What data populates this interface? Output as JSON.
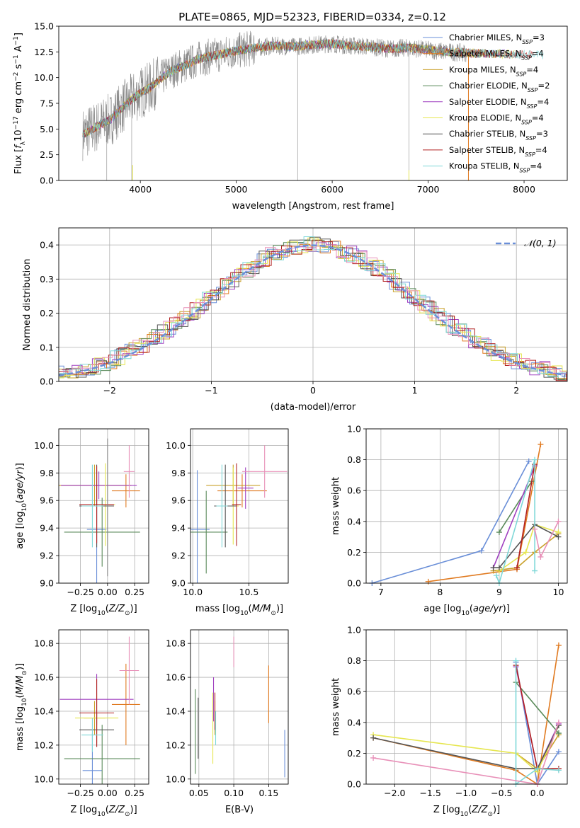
{
  "figure_title": "PLATE=0865, MJD=52323, FIBERID=0334, z=0.12",
  "colors": {
    "Chabrier MILES": "#6a8fd8",
    "Salpeter MILES": "#e07a20",
    "Kroupa MILES": "#c9a02a",
    "Chabrier ELODIE": "#5a8a5a",
    "Salpeter ELODIE": "#a040c0",
    "Kroupa ELODIE": "#e6e650",
    "Chabrier STELIB": "#555555",
    "Salpeter STELIB": "#b22222",
    "Kroupa STELIB": "#7fd8d8",
    "pink": "#e890b8",
    "grey": "#888888"
  },
  "chart_data": [
    {
      "id": "spectrum",
      "type": "line",
      "title": "PLATE=0865, MJD=52323, FIBERID=0334, z=0.12",
      "xlabel": "wavelength [Angstrom, rest frame]",
      "ylabel": "Flux [f_λ10^-17 erg cm^-2 s^-1 A^-1]",
      "xlim": [
        3150,
        8450
      ],
      "ylim": [
        0,
        15
      ],
      "xticks": [
        "4000",
        "5000",
        "6000",
        "7000",
        "8000"
      ],
      "yticks": [
        "0.0",
        "2.5",
        "5.0",
        "7.5",
        "10.0",
        "12.5",
        "15.0"
      ],
      "grid": false,
      "legend": "top-right",
      "data_envelope": {
        "x": [
          3400,
          3500,
          3600,
          3700,
          3800,
          3900,
          4000,
          4100,
          4200,
          4300,
          4400,
          4500,
          4600,
          4800,
          5000,
          5200,
          5400,
          5600,
          5800,
          6000,
          6200,
          6400,
          6600,
          6800,
          7000,
          7200,
          7400
        ],
        "y": [
          4.5,
          5.0,
          5.5,
          6.0,
          7.0,
          7.8,
          8.5,
          9.0,
          9.8,
          10.5,
          11.0,
          11.3,
          11.8,
          12.2,
          12.6,
          12.9,
          13.1,
          13.0,
          13.2,
          13.3,
          13.1,
          13.0,
          12.8,
          12.9,
          12.7,
          12.5,
          12.4
        ]
      },
      "series": [
        {
          "name": "Chabrier MILES, N_SSP=3",
          "ssp": "3"
        },
        {
          "name": "Salpeter MILES, N_SSP=4",
          "ssp": "4"
        },
        {
          "name": "Kroupa MILES, N_SSP=4",
          "ssp": "4"
        },
        {
          "name": "Chabrier ELODIE, N_SSP=2",
          "ssp": "2"
        },
        {
          "name": "Salpeter ELODIE, N_SSP=4",
          "ssp": "4"
        },
        {
          "name": "Kroupa ELODIE, N_SSP=4",
          "ssp": "4"
        },
        {
          "name": "Chabrier STELIB, N_SSP=3",
          "ssp": "3"
        },
        {
          "name": "Salpeter STELIB, N_SSP=4",
          "ssp": "4"
        },
        {
          "name": "Kroupa STELIB, N_SSP=4",
          "ssp": "4"
        }
      ]
    },
    {
      "id": "residuals",
      "type": "line",
      "xlabel": "(data-model)/error",
      "ylabel": "Normed distribution",
      "xlim": [
        -2.5,
        2.5
      ],
      "ylim": [
        0,
        0.45
      ],
      "xticks": [
        "−2",
        "−1",
        "0",
        "1",
        "2"
      ],
      "yticks": [
        "0.0",
        "0.1",
        "0.2",
        "0.3",
        "0.4"
      ],
      "grid": true,
      "legend": "top-right",
      "legend_label": "𝒩(0, 1)",
      "gaussian": {
        "mu": 0,
        "sigma": 1
      }
    },
    {
      "id": "age_vs_Z",
      "type": "scatter",
      "xlabel": "Z [log10(Z/Z⊙)]",
      "ylabel": "age  [log10(age/yr)]",
      "xlim": [
        -0.45,
        0.38
      ],
      "ylim": [
        9.0,
        10.12
      ],
      "xticks": [
        "−0.25",
        "0.00",
        "0.25"
      ],
      "yticks": [
        "9.0",
        "9.2",
        "9.4",
        "9.6",
        "9.8",
        "10.0"
      ],
      "grid": true,
      "points": [
        {
          "series": "Chabrier MILES",
          "x": -0.1,
          "xerr": 0.09,
          "y": 9.39,
          "yerr": 0.43
        },
        {
          "series": "Salpeter MILES",
          "x": 0.17,
          "xerr": 0.13,
          "y": 9.67,
          "yerr": 0.12
        },
        {
          "series": "Kroupa MILES",
          "x": -0.12,
          "xerr": 0.34,
          "y": 9.71,
          "yerr": 0.15
        },
        {
          "series": "Chabrier ELODIE",
          "x": -0.05,
          "xerr": 0.35,
          "y": 9.37,
          "yerr": 0.25
        },
        {
          "series": "Salpeter ELODIE",
          "x": -0.08,
          "xerr": 0.35,
          "y": 9.71,
          "yerr": 0.1
        },
        {
          "series": "Kroupa ELODIE",
          "x": -0.02,
          "xerr": 0.09,
          "y": 9.57,
          "yerr": 0.3
        },
        {
          "series": "Chabrier STELIB",
          "x": -0.1,
          "xerr": 0.16,
          "y": 9.56,
          "yerr": 0.3
        },
        {
          "series": "Salpeter STELIB",
          "x": -0.1,
          "xerr": 0.16,
          "y": 9.57,
          "yerr": 0.28
        },
        {
          "series": "Kroupa STELIB",
          "x": -0.14,
          "xerr": 0.1,
          "y": 9.56,
          "yerr": 0.3
        },
        {
          "series": "grey",
          "x": 0.0,
          "xerr": 0.0,
          "y": 9.55,
          "yerr": 0.5
        },
        {
          "series": "pink",
          "x": 0.2,
          "xerr": 0.05,
          "y": 9.81,
          "yerr": 0.19
        }
      ]
    },
    {
      "id": "age_vs_mass",
      "type": "scatter",
      "xlabel": "mass [log10(M/M⊙)]",
      "ylabel": "",
      "xlim": [
        9.98,
        10.85
      ],
      "ylim": [
        9.0,
        10.12
      ],
      "xticks": [
        "10.0",
        "10.5"
      ],
      "yticks": [
        "9.0",
        "9.2",
        "9.4",
        "9.6",
        "9.8",
        "10.0"
      ],
      "grid": true,
      "points": [
        {
          "series": "Chabrier MILES",
          "x": 10.04,
          "xerr": 0.11,
          "y": 9.39,
          "yerr": 0.43
        },
        {
          "series": "Salpeter MILES",
          "x": 10.44,
          "xerr": 0.22,
          "y": 9.67,
          "yerr": 0.12
        },
        {
          "series": "Kroupa MILES",
          "x": 10.36,
          "xerr": 0.24,
          "y": 9.71,
          "yerr": 0.15
        },
        {
          "series": "Chabrier ELODIE",
          "x": 10.12,
          "xerr": 0.19,
          "y": 9.37,
          "yerr": 0.3
        },
        {
          "series": "Salpeter ELODIE",
          "x": 10.47,
          "xerr": 0.07,
          "y": 9.69,
          "yerr": 0.15
        },
        {
          "series": "Kroupa ELODIE",
          "x": 10.36,
          "xerr": 0.05,
          "y": 9.56,
          "yerr": 0.28
        },
        {
          "series": "Chabrier STELIB",
          "x": 10.29,
          "xerr": 0.1,
          "y": 9.56,
          "yerr": 0.3
        },
        {
          "series": "Salpeter STELIB",
          "x": 10.39,
          "xerr": 0.04,
          "y": 9.57,
          "yerr": 0.3
        },
        {
          "series": "Kroupa STELIB",
          "x": 10.26,
          "xerr": 0.05,
          "y": 9.56,
          "yerr": 0.3
        },
        {
          "series": "pink",
          "x": 10.64,
          "xerr": 0.2,
          "y": 9.81,
          "yerr": 0.19
        }
      ]
    },
    {
      "id": "weight_vs_age",
      "type": "line",
      "xlabel": "age  [log10(age/yr)]",
      "ylabel": "mass weight",
      "xlim": [
        6.75,
        10.15
      ],
      "ylim": [
        0,
        1.0
      ],
      "xticks": [
        "7",
        "8",
        "9",
        "10"
      ],
      "yticks": [
        "0.0",
        "0.2",
        "0.4",
        "0.6",
        "0.8",
        "1.0"
      ],
      "grid": true,
      "series": [
        {
          "name": "Chabrier MILES",
          "x": [
            6.85,
            8.7,
            9.5
          ],
          "y": [
            0.0,
            0.21,
            0.79
          ]
        },
        {
          "name": "Salpeter MILES",
          "x": [
            7.8,
            9.3,
            9.7
          ],
          "y": [
            0.01,
            0.09,
            0.9
          ]
        },
        {
          "name": "Kroupa MILES",
          "x": [
            8.9,
            9.3,
            9.6,
            10.0
          ],
          "y": [
            0.08,
            0.1,
            0.2,
            0.32
          ]
        },
        {
          "name": "Chabrier ELODIE",
          "x": [
            9.0,
            9.55
          ],
          "y": [
            0.33,
            0.66
          ]
        },
        {
          "name": "Salpeter ELODIE",
          "x": [
            8.9,
            9.6
          ],
          "y": [
            0.1,
            0.76
          ]
        },
        {
          "name": "Kroupa ELODIE",
          "x": [
            9.0,
            9.45,
            9.6,
            10.0
          ],
          "y": [
            0.08,
            0.2,
            0.38,
            0.33
          ]
        },
        {
          "name": "Chabrier STELIB",
          "x": [
            8.9,
            9.0,
            9.6,
            10.0
          ],
          "y": [
            0.1,
            0.1,
            0.38,
            0.3
          ]
        },
        {
          "name": "Salpeter STELIB",
          "x": [
            9.3,
            9.6
          ],
          "y": [
            0.1,
            0.77
          ]
        },
        {
          "name": "Kroupa STELIB",
          "x": [
            8.95,
            9.0,
            9.6,
            9.6
          ],
          "y": [
            0.05,
            0.0,
            0.8,
            0.08
          ]
        },
        {
          "name": "pink",
          "x": [
            9.6,
            9.7,
            10.0
          ],
          "y": [
            0.35,
            0.17,
            0.4
          ]
        }
      ]
    },
    {
      "id": "mass_vs_Z",
      "type": "scatter",
      "xlabel": "Z [log10(Z/Z⊙)]",
      "ylabel": "mass [log10(M/M⊙)]",
      "xlim": [
        -0.45,
        0.38
      ],
      "ylim": [
        9.97,
        10.88
      ],
      "xticks": [
        "−0.25",
        "0.00",
        "0.25"
      ],
      "yticks": [
        "10.0",
        "10.2",
        "10.4",
        "10.6",
        "10.8"
      ],
      "grid": true,
      "points": [
        {
          "series": "Chabrier MILES",
          "x": -0.14,
          "xerr": 0.09,
          "y": 10.05,
          "yerr": 0.22
        },
        {
          "series": "Salpeter MILES",
          "x": 0.17,
          "xerr": 0.13,
          "y": 10.44,
          "yerr": 0.24
        },
        {
          "series": "Kroupa MILES",
          "x": -0.12,
          "xerr": 0.1,
          "y": 10.36,
          "yerr": 0.1
        },
        {
          "series": "Chabrier ELODIE",
          "x": -0.05,
          "xerr": 0.35,
          "y": 10.12,
          "yerr": 0.2
        },
        {
          "series": "Salpeter ELODIE",
          "x": -0.1,
          "xerr": 0.34,
          "y": 10.47,
          "yerr": 0.15
        },
        {
          "series": "Kroupa ELODIE",
          "x": -0.1,
          "xerr": 0.2,
          "y": 10.36,
          "yerr": 0.15
        },
        {
          "series": "Chabrier STELIB",
          "x": -0.1,
          "xerr": 0.16,
          "y": 10.29,
          "yerr": 0.1
        },
        {
          "series": "Salpeter STELIB",
          "x": -0.1,
          "xerr": 0.16,
          "y": 10.39,
          "yerr": 0.2
        },
        {
          "series": "Kroupa STELIB",
          "x": -0.14,
          "xerr": 0.1,
          "y": 10.26,
          "yerr": 0.1
        },
        {
          "series": "pink",
          "x": 0.2,
          "xerr": 0.09,
          "y": 10.64,
          "yerr": 0.2
        }
      ]
    },
    {
      "id": "mass_vs_ebv",
      "type": "scatter",
      "xlabel": "E(B-V)",
      "ylabel": "",
      "xlim": [
        0.038,
        0.178
      ],
      "ylim": [
        9.97,
        10.88
      ],
      "xticks": [
        "0.05",
        "0.10",
        "0.15"
      ],
      "yticks": [
        "10.0",
        "10.2",
        "10.4",
        "10.6",
        "10.8"
      ],
      "grid": true,
      "points": [
        {
          "series": "Chabrier MILES",
          "x": 0.173,
          "xerr": 0,
          "y": 10.15,
          "yerr": 0.14
        },
        {
          "series": "Salpeter MILES",
          "x": 0.15,
          "xerr": 0,
          "y": 10.5,
          "yerr": 0.17
        },
        {
          "series": "Kroupa MILES",
          "x": 0.073,
          "xerr": 0,
          "y": 10.36,
          "yerr": 0.1
        },
        {
          "series": "Chabrier ELODIE",
          "x": 0.045,
          "xerr": 0,
          "y": 10.28,
          "yerr": 0.25
        },
        {
          "series": "Salpeter ELODIE",
          "x": 0.071,
          "xerr": 0,
          "y": 10.47,
          "yerr": 0.13
        },
        {
          "series": "Kroupa ELODIE",
          "x": 0.07,
          "xerr": 0,
          "y": 10.3,
          "yerr": 0.21
        },
        {
          "series": "Chabrier STELIB",
          "x": 0.049,
          "xerr": 0,
          "y": 10.3,
          "yerr": 0.18
        },
        {
          "series": "Salpeter STELIB",
          "x": 0.073,
          "xerr": 0,
          "y": 10.4,
          "yerr": 0.11
        },
        {
          "series": "Kroupa STELIB",
          "x": 0.074,
          "xerr": 0,
          "y": 10.3,
          "yerr": 0.1
        },
        {
          "series": "pink",
          "x": 0.1,
          "xerr": 0,
          "y": 10.75,
          "yerr": 0.09
        }
      ]
    },
    {
      "id": "weight_vs_Z",
      "type": "line",
      "xlabel": "Z [log10(Z/Z⊙)]",
      "ylabel": "mass weight",
      "xlim": [
        -2.4,
        0.42
      ],
      "ylim": [
        0,
        1.0
      ],
      "xticks": [
        "−2.0",
        "−1.5",
        "−1.0",
        "−0.5",
        "0.0"
      ],
      "yticks": [
        "0.0",
        "0.2",
        "0.4",
        "0.6",
        "0.8",
        "1.0"
      ],
      "grid": true,
      "series": [
        {
          "name": "Chabrier MILES",
          "x": [
            -0.3,
            0.0,
            0.3
          ],
          "y": [
            0.79,
            0.0,
            0.21
          ]
        },
        {
          "name": "Salpeter MILES",
          "x": [
            -2.3,
            -0.3,
            0.0,
            0.3
          ],
          "y": [
            0.3,
            0.09,
            0.0,
            0.9
          ]
        },
        {
          "name": "Kroupa MILES",
          "x": [
            -0.3,
            0.0,
            0.3
          ],
          "y": [
            0.2,
            0.1,
            0.32
          ]
        },
        {
          "name": "Chabrier ELODIE",
          "x": [
            -0.3,
            0.3
          ],
          "y": [
            0.66,
            0.33
          ]
        },
        {
          "name": "Salpeter ELODIE",
          "x": [
            -0.3,
            0.0,
            0.3
          ],
          "y": [
            0.76,
            0.1,
            0.39
          ]
        },
        {
          "name": "Kroupa ELODIE",
          "x": [
            -2.3,
            -0.3,
            0.0,
            0.3
          ],
          "y": [
            0.32,
            0.2,
            0.08,
            0.38
          ]
        },
        {
          "name": "Chabrier STELIB",
          "x": [
            -2.3,
            -0.3,
            0.0,
            0.3
          ],
          "y": [
            0.3,
            0.1,
            0.1,
            0.38
          ]
        },
        {
          "name": "Salpeter STELIB",
          "x": [
            -0.3,
            0.0,
            0.3
          ],
          "y": [
            0.77,
            0.1,
            0.1
          ]
        },
        {
          "name": "Kroupa STELIB",
          "x": [
            -0.3,
            -0.3,
            0.0,
            0.3
          ],
          "y": [
            0.8,
            0.0,
            0.1,
            0.09
          ]
        },
        {
          "name": "pink",
          "x": [
            -2.3,
            0.0,
            0.3
          ],
          "y": [
            0.17,
            0.0,
            0.4
          ]
        }
      ]
    }
  ]
}
